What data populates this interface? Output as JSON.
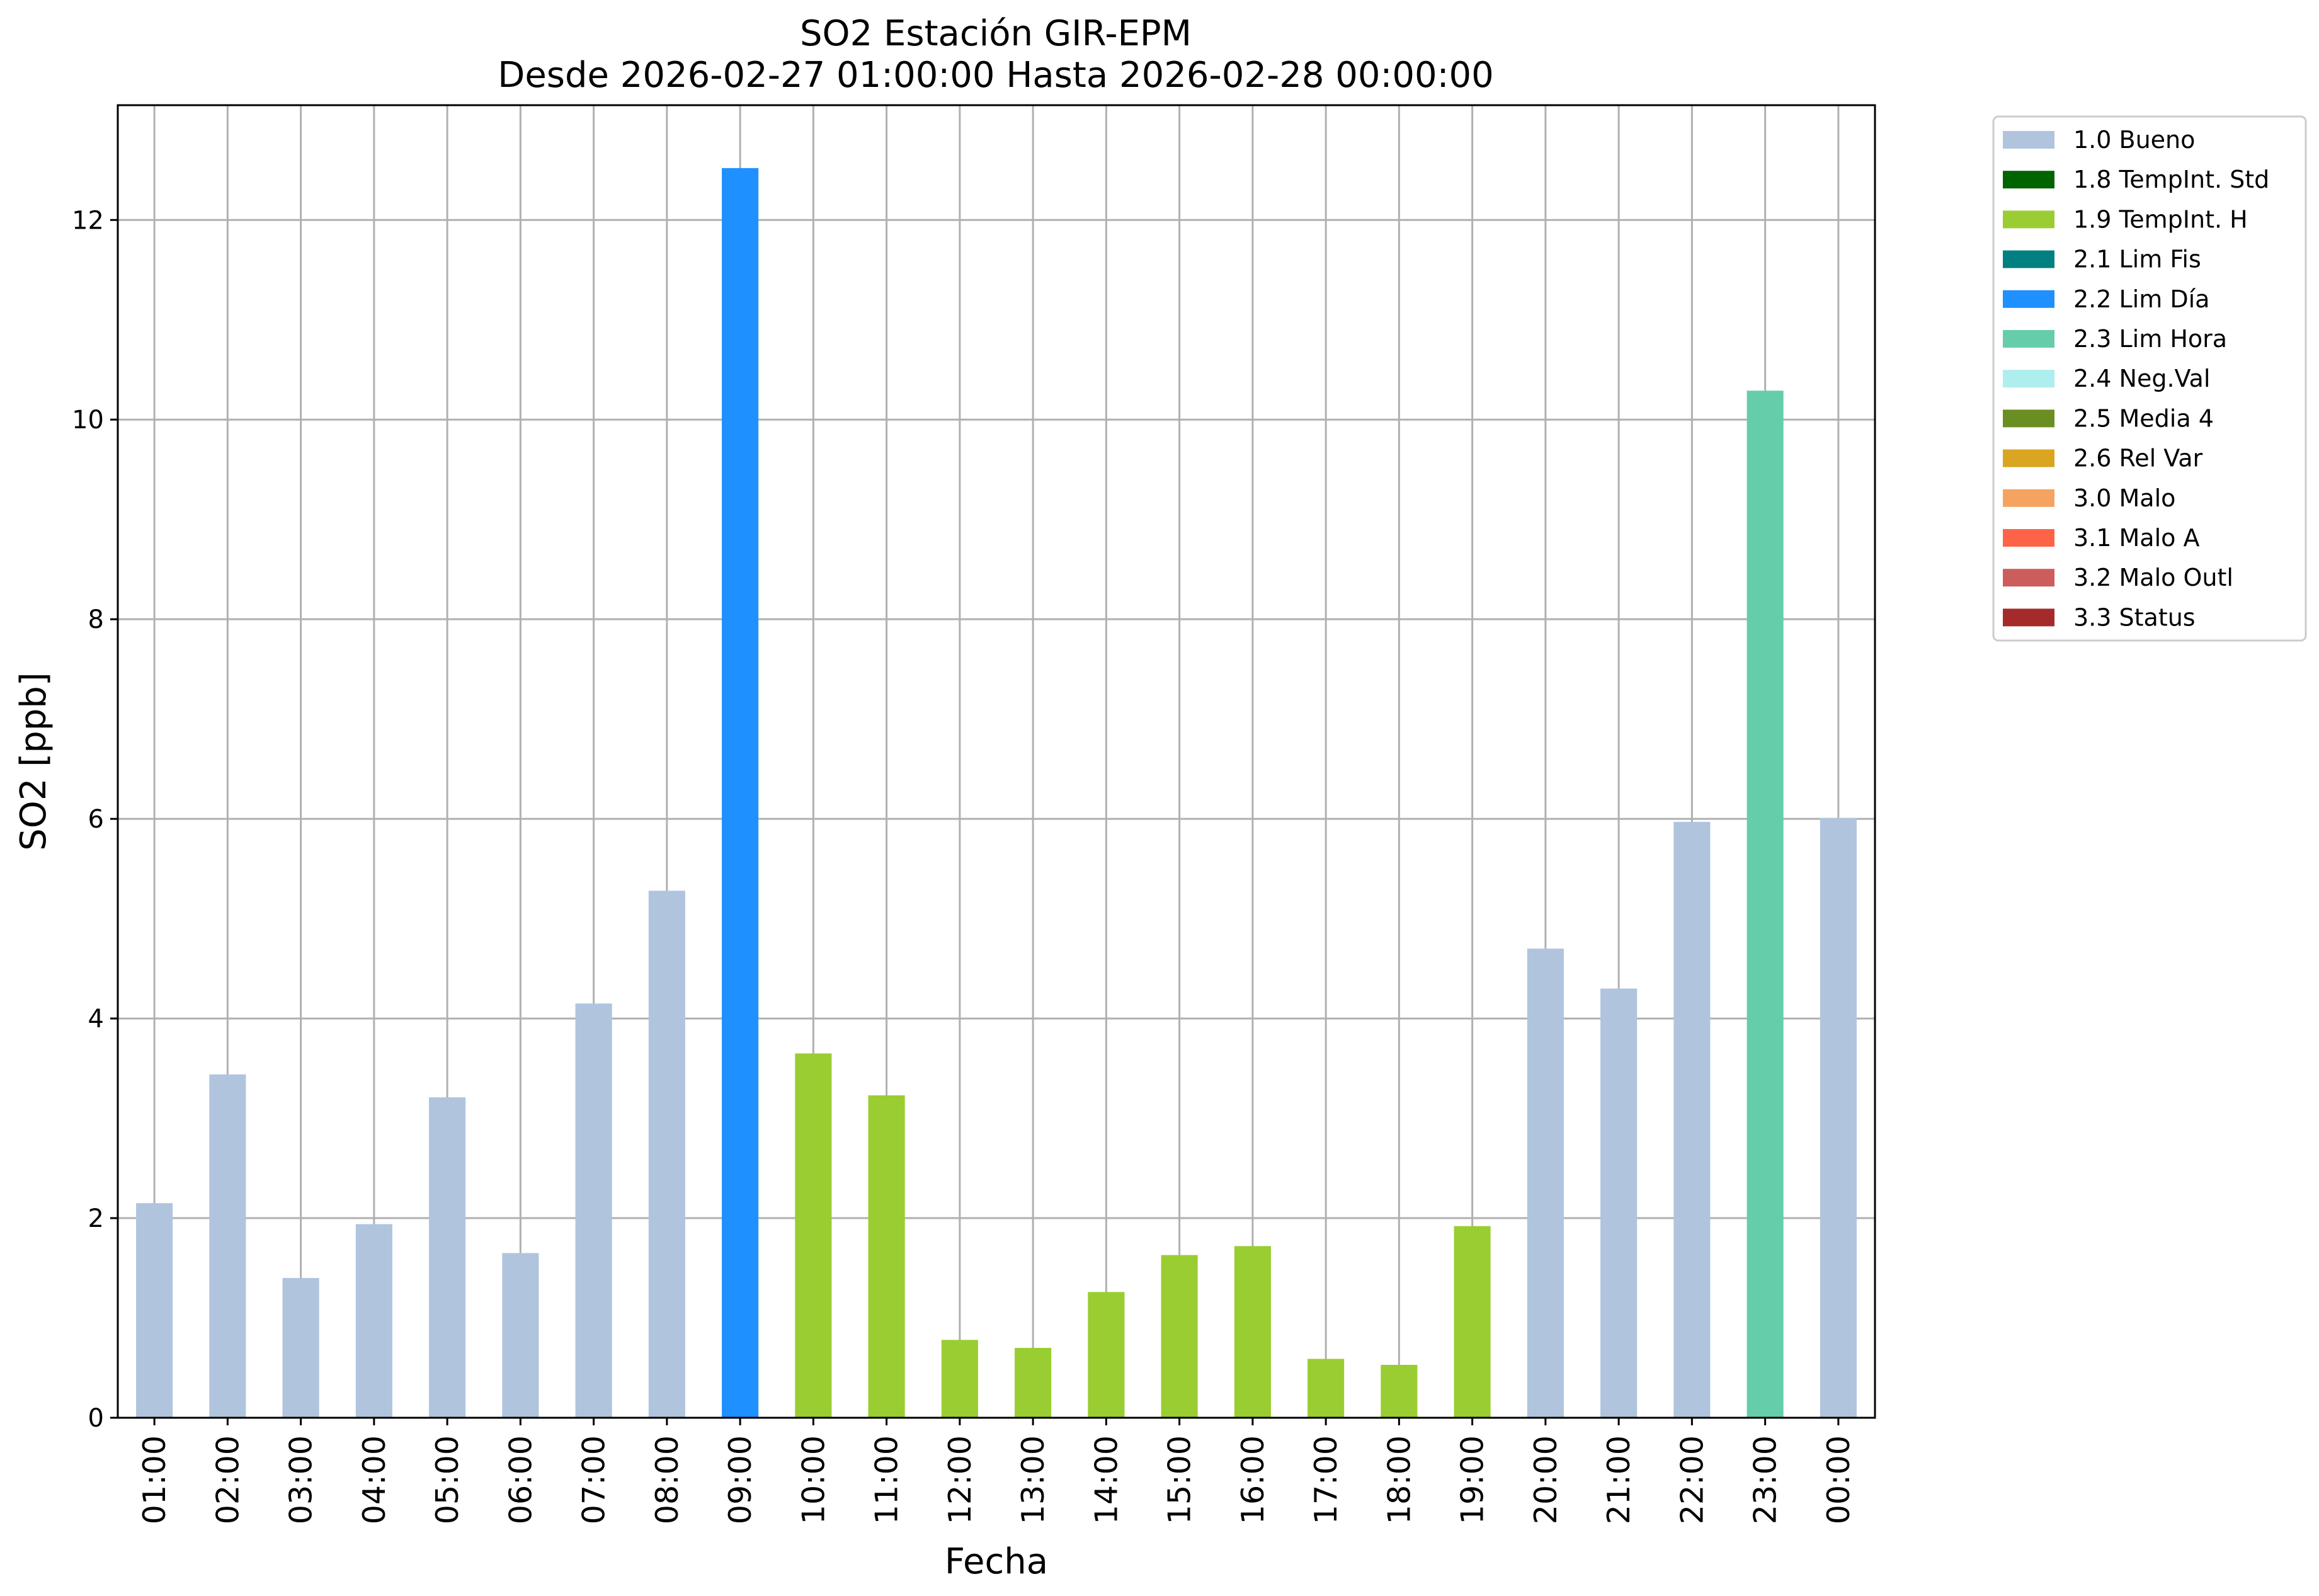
{
  "chart_data": {
    "type": "bar",
    "title": "SO2 Estación GIR-EPM",
    "subtitle": "Desde 2026-02-27 01:00:00 Hasta 2026-02-28 00:00:00",
    "xlabel": "Fecha",
    "ylabel": "SO2 [ppb]",
    "ylim": [
      0,
      13.15
    ],
    "yticks": [
      0,
      2,
      4,
      6,
      8,
      10,
      12
    ],
    "grid": true,
    "legend_position": "outside-top-right",
    "categories": [
      "01:00",
      "02:00",
      "03:00",
      "04:00",
      "05:00",
      "06:00",
      "07:00",
      "08:00",
      "09:00",
      "10:00",
      "11:00",
      "12:00",
      "13:00",
      "14:00",
      "15:00",
      "16:00",
      "17:00",
      "18:00",
      "19:00",
      "20:00",
      "21:00",
      "22:00",
      "23:00",
      "00:00"
    ],
    "values": [
      2.15,
      3.44,
      1.4,
      1.94,
      3.21,
      1.65,
      4.15,
      5.28,
      12.52,
      3.65,
      3.23,
      0.78,
      0.7,
      1.26,
      1.63,
      1.72,
      0.59,
      0.53,
      1.92,
      4.7,
      4.3,
      5.97,
      10.29,
      6.01
    ],
    "flags": [
      "1.0 Bueno",
      "1.0 Bueno",
      "1.0 Bueno",
      "1.0 Bueno",
      "1.0 Bueno",
      "1.0 Bueno",
      "1.0 Bueno",
      "1.0 Bueno",
      "2.2 Lim Día",
      "1.9 TempInt. H",
      "1.9 TempInt. H",
      "1.9 TempInt. H",
      "1.9 TempInt. H",
      "1.9 TempInt. H",
      "1.9 TempInt. H",
      "1.9 TempInt. H",
      "1.9 TempInt. H",
      "1.9 TempInt. H",
      "1.9 TempInt. H",
      "1.0 Bueno",
      "1.0 Bueno",
      "1.0 Bueno",
      "2.3 Lim Hora",
      "1.0 Bueno"
    ],
    "legend": [
      {
        "label": "1.0 Bueno",
        "color": "#b0c4de"
      },
      {
        "label": "1.8 TempInt. Std",
        "color": "#006400"
      },
      {
        "label": "1.9 TempInt. H",
        "color": "#9acd32"
      },
      {
        "label": "2.1 Lim Fis",
        "color": "#008080"
      },
      {
        "label": "2.2 Lim Día",
        "color": "#1e90ff"
      },
      {
        "label": "2.3 Lim Hora",
        "color": "#66cdaa"
      },
      {
        "label": "2.4 Neg.Val",
        "color": "#afeeee"
      },
      {
        "label": "2.5 Media 4",
        "color": "#6b8e23"
      },
      {
        "label": "2.6 Rel Var",
        "color": "#daa520"
      },
      {
        "label": "3.0 Malo",
        "color": "#f4a460"
      },
      {
        "label": "3.1 Malo A",
        "color": "#ff6347"
      },
      {
        "label": "3.2 Malo Outl",
        "color": "#cd5c5c"
      },
      {
        "label": "3.3 Status",
        "color": "#a52a2a"
      }
    ],
    "grid_color": "#b0b0b0"
  }
}
